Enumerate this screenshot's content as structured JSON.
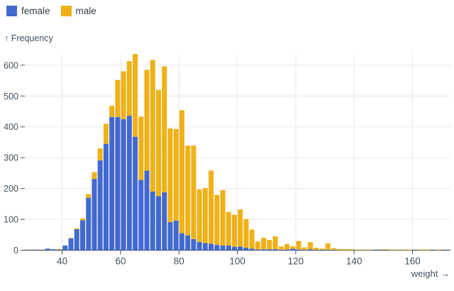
{
  "legend": {
    "items": [
      {
        "label": "female",
        "color": "#4269d0"
      },
      {
        "label": "male",
        "color": "#efb118"
      }
    ]
  },
  "y_axis": {
    "title": "↑ Frequency",
    "ticks": [
      600,
      500,
      400,
      300,
      200,
      100,
      0
    ]
  },
  "x_axis": {
    "title": "weight →",
    "ticks": [
      40,
      60,
      80,
      100,
      120,
      140,
      160
    ]
  },
  "colors": {
    "female": "#4269d0",
    "male": "#efb118",
    "grid": "#e4e7ea",
    "axis": "#3d4c5c",
    "text": "#43525f"
  },
  "chart_data": {
    "type": "bar",
    "subtype": "stacked-histogram",
    "title": "",
    "xlabel": "weight",
    "ylabel": "Frequency",
    "grid": true,
    "legend_position": "top-left",
    "xlim": [
      30,
      172
    ],
    "ylim": [
      0,
      650
    ],
    "bin_width": 2,
    "bins": [
      34,
      36,
      38,
      40,
      42,
      44,
      46,
      48,
      50,
      52,
      54,
      56,
      58,
      60,
      62,
      64,
      66,
      68,
      70,
      72,
      74,
      76,
      78,
      80,
      82,
      84,
      86,
      88,
      90,
      92,
      94,
      96,
      98,
      100,
      102,
      104,
      106,
      108,
      110,
      112,
      114,
      116,
      118,
      120,
      122,
      124,
      126,
      128,
      130,
      132,
      134,
      136,
      138,
      140,
      142,
      144,
      146,
      148,
      150,
      152,
      154,
      156,
      158,
      160,
      162,
      164,
      166,
      168
    ],
    "series": [
      {
        "name": "female",
        "color": "#4269d0",
        "values": [
          5,
          3,
          2,
          15,
          38,
          68,
          97,
          170,
          231,
          291,
          345,
          432,
          432,
          425,
          436,
          368,
          228,
          258,
          190,
          175,
          188,
          91,
          96,
          55,
          48,
          36,
          27,
          23,
          21,
          17,
          15,
          15,
          11,
          12,
          8,
          5,
          2,
          3,
          3,
          4,
          1,
          2,
          5,
          2,
          1,
          3,
          1,
          1,
          1,
          1,
          0,
          0,
          0,
          0,
          0,
          0,
          0,
          1,
          1,
          0,
          0,
          0,
          0,
          0,
          0,
          0,
          0,
          0
        ]
      },
      {
        "name": "male",
        "color": "#efb118",
        "values": [
          0,
          0,
          1,
          0,
          2,
          3,
          6,
          12,
          22,
          39,
          65,
          36,
          120,
          155,
          177,
          268,
          205,
          327,
          427,
          345,
          408,
          304,
          297,
          399,
          291,
          303,
          170,
          179,
          237,
          162,
          180,
          109,
          104,
          120,
          93,
          62,
          26,
          37,
          30,
          41,
          11,
          18,
          8,
          28,
          8,
          23,
          7,
          4,
          21,
          5,
          4,
          3,
          3,
          2,
          2,
          2,
          0,
          1,
          1,
          1,
          1,
          1,
          1,
          0,
          1,
          1,
          0,
          1
        ]
      }
    ]
  }
}
